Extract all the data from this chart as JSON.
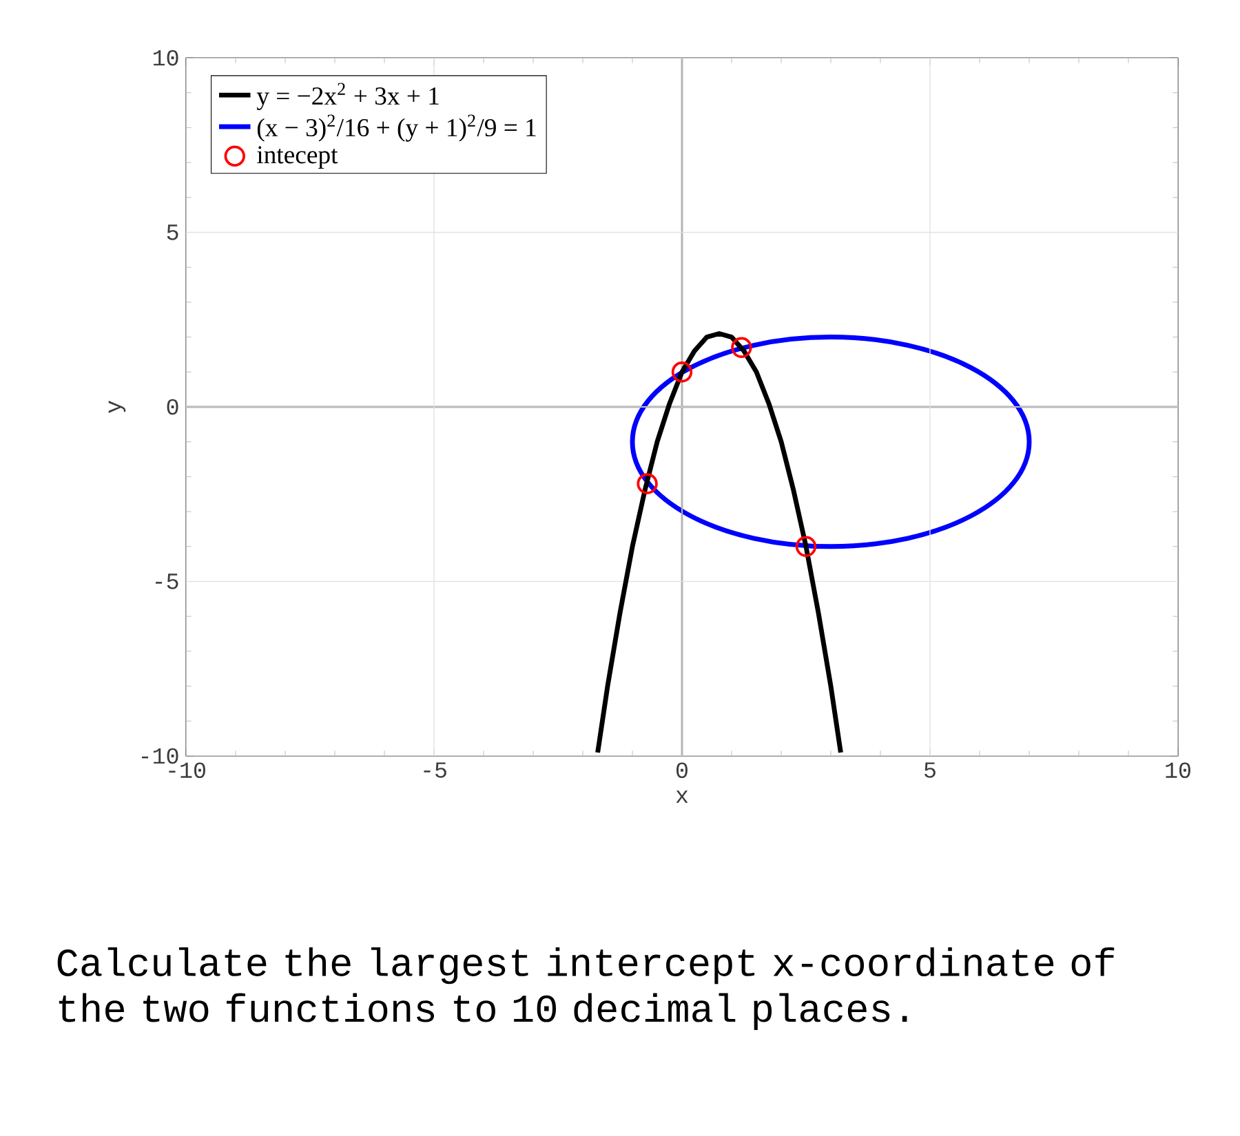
{
  "chart_data": {
    "type": "line",
    "xlabel": "x",
    "ylabel": "y",
    "xlim": [
      -10,
      10
    ],
    "ylim": [
      -10,
      10
    ],
    "xticks": [
      -10,
      -5,
      0,
      5,
      10
    ],
    "yticks": [
      -10,
      -5,
      0,
      5,
      10
    ],
    "grid": true,
    "legend": "top left",
    "marker": "none",
    "line_style": "solid",
    "series": [
      {
        "name": "y = −2x$^{2}$ + 3x + 1",
        "color": "#000000",
        "x": [
          -1.7,
          -1.5,
          -1.25,
          -1,
          -0.75,
          -0.5,
          -0.25,
          0,
          0.25,
          0.5,
          0.75,
          1,
          1.25,
          1.5,
          1.75,
          2,
          2.25,
          2.5,
          2.75,
          3,
          3.2
        ],
        "values": [
          -9.9,
          -8,
          -5.9,
          -4,
          -2.4,
          -1,
          0.1,
          1,
          1.6,
          2,
          2.1,
          2,
          1.6,
          1,
          0.1,
          -1,
          -2.4,
          -4,
          -5.9,
          -8,
          -9.9
        ]
      },
      {
        "name": "intecept",
        "type": "scatter",
        "marker": "circle",
        "color": "#ff0000",
        "x": [
          -0.7,
          0,
          1.2,
          2.5
        ],
        "values": [
          -2.2,
          1,
          1.7,
          -4
        ]
      }
    ],
    "annotations": [
      "(x − 3)$^{2}$/16 + (y + 1)$^{2}$/9 = 1",
      "Calculate the largest intercept x-coordinate of the two functions to 10 decimal places."
    ]
  }
}
